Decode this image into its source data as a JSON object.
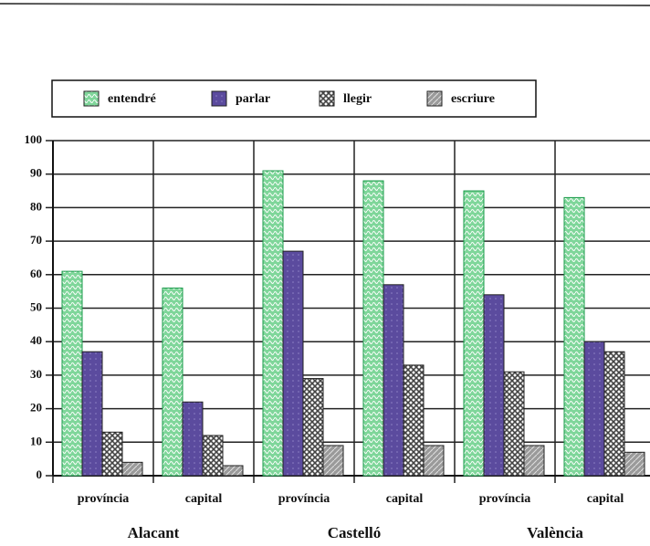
{
  "chart_data": {
    "type": "bar",
    "categories": [
      "província",
      "capital",
      "província",
      "capital",
      "província",
      "capital"
    ],
    "groups": [
      "Alacant",
      "Castelló",
      "València"
    ],
    "series": [
      {
        "name": "entendré",
        "color": "#7fd69a",
        "values": [
          61,
          56,
          91,
          88,
          85,
          83
        ]
      },
      {
        "name": "parlar",
        "color": "#5b4b9e",
        "values": [
          37,
          22,
          67,
          57,
          54,
          40
        ]
      },
      {
        "name": "llegir",
        "color": "#444444",
        "values": [
          13,
          12,
          29,
          33,
          31,
          37
        ]
      },
      {
        "name": "escriure",
        "color": "#9a9a9a",
        "values": [
          4,
          3,
          9,
          9,
          9,
          7
        ]
      }
    ],
    "ylim": [
      0,
      100
    ],
    "yticks": [
      0,
      10,
      20,
      30,
      40,
      50,
      60,
      70,
      80,
      90,
      100
    ],
    "grid": true
  }
}
